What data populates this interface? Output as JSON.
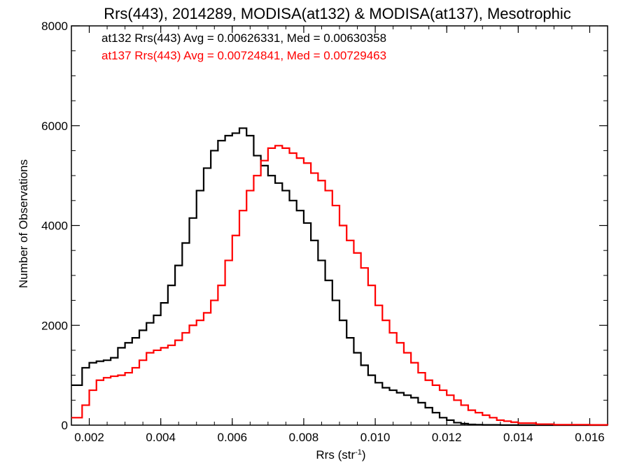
{
  "chart_data": {
    "type": "line",
    "step": true,
    "title": "Rrs(443), 2014289, MODISA(at132) & MODISA(at137), Mesotrophic",
    "xlabel": "Rrs (str",
    "xlabel_sup": "-1",
    "xlabel_close": ")",
    "ylabel": "Number of Observations",
    "xlim": [
      0.0015,
      0.0165
    ],
    "ylim": [
      0,
      8000
    ],
    "x_ticks": [
      0.002,
      0.004,
      0.006,
      0.008,
      0.01,
      0.012,
      0.014,
      0.016
    ],
    "x_tick_labels": [
      "0.002",
      "0.004",
      "0.006",
      "0.008",
      "0.010",
      "0.012",
      "0.014",
      "0.016"
    ],
    "y_ticks": [
      0,
      2000,
      4000,
      6000,
      8000
    ],
    "y_tick_labels": [
      "0",
      "2000",
      "4000",
      "6000",
      "8000"
    ],
    "grid": false,
    "legend_position": "top-left",
    "series": [
      {
        "name": "at132 Rrs(443) Avg = 0.00626331, Med = 0.00630358",
        "color": "#000000",
        "x": [
          0.0015,
          0.0018,
          0.002,
          0.0022,
          0.0024,
          0.0026,
          0.0028,
          0.003,
          0.0032,
          0.0034,
          0.0036,
          0.0038,
          0.004,
          0.0042,
          0.0044,
          0.0046,
          0.0048,
          0.005,
          0.0052,
          0.0054,
          0.0056,
          0.0058,
          0.006,
          0.0062,
          0.0064,
          0.0066,
          0.0068,
          0.007,
          0.0072,
          0.0074,
          0.0076,
          0.0078,
          0.008,
          0.0082,
          0.0084,
          0.0086,
          0.0088,
          0.009,
          0.0092,
          0.0094,
          0.0096,
          0.0098,
          0.01,
          0.0102,
          0.0104,
          0.0106,
          0.0108,
          0.011,
          0.0112,
          0.0114,
          0.0116,
          0.0118,
          0.012,
          0.0122,
          0.0124,
          0.0126,
          0.0128,
          0.013,
          0.0135,
          0.014,
          0.015,
          0.0165
        ],
        "y": [
          800,
          1150,
          1250,
          1280,
          1300,
          1350,
          1550,
          1650,
          1750,
          1900,
          2050,
          2200,
          2450,
          2800,
          3200,
          3650,
          4150,
          4700,
          5150,
          5500,
          5700,
          5800,
          5850,
          5950,
          5800,
          5400,
          5200,
          5000,
          4850,
          4700,
          4500,
          4300,
          4050,
          3700,
          3300,
          2900,
          2500,
          2100,
          1750,
          1450,
          1200,
          1000,
          850,
          750,
          700,
          650,
          600,
          550,
          450,
          350,
          250,
          150,
          100,
          50,
          30,
          15,
          10,
          5,
          2,
          0,
          0,
          0
        ]
      },
      {
        "name": "at137 Rrs(443) Avg = 0.00724841, Med = 0.00729463",
        "color": "#ff0000",
        "x": [
          0.0015,
          0.0018,
          0.002,
          0.0022,
          0.0024,
          0.0026,
          0.0028,
          0.003,
          0.0032,
          0.0034,
          0.0036,
          0.0038,
          0.004,
          0.0042,
          0.0044,
          0.0046,
          0.0048,
          0.005,
          0.0052,
          0.0054,
          0.0056,
          0.0058,
          0.006,
          0.0062,
          0.0064,
          0.0066,
          0.0068,
          0.007,
          0.0072,
          0.0074,
          0.0076,
          0.0078,
          0.008,
          0.0082,
          0.0084,
          0.0086,
          0.0088,
          0.009,
          0.0092,
          0.0094,
          0.0096,
          0.0098,
          0.01,
          0.0102,
          0.0104,
          0.0106,
          0.0108,
          0.011,
          0.0112,
          0.0114,
          0.0116,
          0.0118,
          0.012,
          0.0122,
          0.0124,
          0.0126,
          0.0128,
          0.013,
          0.0132,
          0.0134,
          0.0136,
          0.0138,
          0.014,
          0.0145,
          0.015,
          0.016,
          0.0165
        ],
        "y": [
          150,
          400,
          700,
          900,
          950,
          980,
          1000,
          1050,
          1150,
          1300,
          1450,
          1500,
          1550,
          1600,
          1700,
          1850,
          2000,
          2100,
          2250,
          2500,
          2800,
          3300,
          3800,
          4300,
          4700,
          5000,
          5300,
          5550,
          5600,
          5550,
          5450,
          5350,
          5250,
          5050,
          4900,
          4700,
          4400,
          4000,
          3700,
          3450,
          3150,
          2800,
          2400,
          2100,
          1850,
          1650,
          1450,
          1250,
          1050,
          900,
          800,
          700,
          600,
          500,
          400,
          300,
          250,
          200,
          150,
          100,
          80,
          60,
          40,
          20,
          10,
          5,
          0
        ]
      }
    ]
  }
}
